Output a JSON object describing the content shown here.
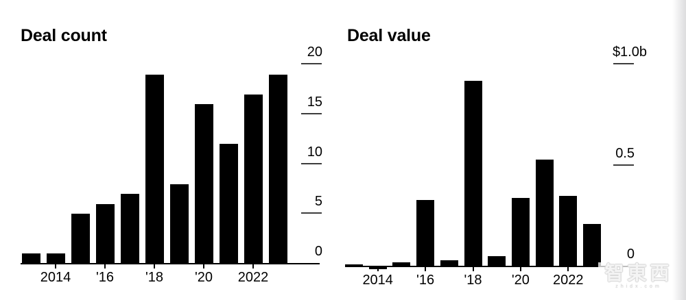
{
  "page": {
    "background": "#ffffff",
    "colors": {
      "bar": "#000000",
      "axis": "#000000",
      "y_tick_line": "#3c3c3c",
      "text": "#000000"
    }
  },
  "chart_data": [
    {
      "type": "bar",
      "title": "Deal count",
      "categories": [
        2013,
        2014,
        2015,
        2016,
        2017,
        2018,
        2019,
        2020,
        2021,
        2022,
        2023
      ],
      "values": [
        1,
        1,
        5,
        6,
        7,
        19,
        8,
        16,
        12,
        17,
        19
      ],
      "ylim": [
        0,
        20
      ],
      "grid": false,
      "legend": null,
      "y_ticks": [
        {
          "label": "20",
          "value": 20
        },
        {
          "label": "15",
          "value": 15
        },
        {
          "label": "10",
          "value": 10
        },
        {
          "label": "5",
          "value": 5
        },
        {
          "label": "0",
          "value": 0
        }
      ],
      "x_ticks": [
        {
          "label": "2014",
          "year": 2014
        },
        {
          "label": "'16",
          "year": 2016
        },
        {
          "label": "'18",
          "year": 2018
        },
        {
          "label": "'20",
          "year": 2020
        },
        {
          "label": "2022",
          "year": 2022
        }
      ]
    },
    {
      "type": "bar",
      "title": "Deal value",
      "categories": [
        2013,
        2014,
        2015,
        2016,
        2017,
        2018,
        2019,
        2020,
        2021,
        2022,
        2023
      ],
      "values": [
        0.01,
        -0.01,
        0.02,
        0.33,
        0.03,
        0.92,
        0.05,
        0.34,
        0.53,
        0.35,
        0.21
      ],
      "ylim": [
        0,
        1.0
      ],
      "grid": false,
      "legend": null,
      "y_ticks": [
        {
          "label": "$1.0b",
          "value": 1.0
        },
        {
          "label": "0.5",
          "value": 0.5
        },
        {
          "label": "0",
          "value": 0
        }
      ],
      "x_ticks": [
        {
          "label": "2014",
          "year": 2014
        },
        {
          "label": "'16",
          "year": 2016
        },
        {
          "label": "'18",
          "year": 2018
        },
        {
          "label": "'20",
          "year": 2020
        },
        {
          "label": "2022",
          "year": 2022
        }
      ]
    }
  ],
  "watermark": {
    "logo": "智東西",
    "domain": "zhidx.com"
  }
}
